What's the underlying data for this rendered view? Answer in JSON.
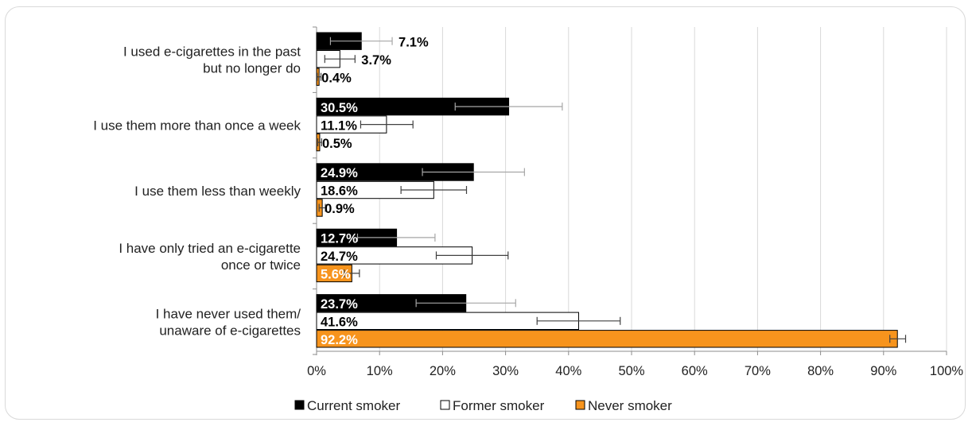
{
  "chart_data": {
    "type": "bar",
    "orientation": "horizontal",
    "categories": [
      [
        "I used e-cigarettes in the past",
        "but no longer do"
      ],
      [
        "I use them more than once a week"
      ],
      [
        "I use them less than weekly"
      ],
      [
        "I have only tried an e-cigarette",
        "once or twice"
      ],
      [
        "I have never used them/",
        "unaware of e-cigarettes"
      ]
    ],
    "series": [
      {
        "name": "Current smoker",
        "color": "#000000",
        "values": [
          7.1,
          30.5,
          24.9,
          12.7,
          23.7
        ],
        "labels": [
          "7.1%",
          "30.5%",
          "24.9%",
          "12.7%",
          "23.7%"
        ],
        "err_low": [
          2.2,
          22.0,
          16.8,
          6.5,
          15.8
        ],
        "err_high": [
          12.0,
          39.0,
          33.0,
          18.8,
          31.6
        ]
      },
      {
        "name": "Former smoker",
        "color": "#ffffff",
        "values": [
          3.7,
          11.1,
          18.6,
          24.7,
          41.6
        ],
        "labels": [
          "3.7%",
          "11.1%",
          "18.6%",
          "24.7%",
          "41.6%"
        ],
        "err_low": [
          1.3,
          7.0,
          13.4,
          19.0,
          35.0
        ],
        "err_high": [
          6.1,
          15.3,
          23.8,
          30.4,
          48.2
        ]
      },
      {
        "name": "Never smoker",
        "color": "#f7941d",
        "values": [
          0.4,
          0.5,
          0.9,
          5.6,
          92.2
        ],
        "labels": [
          "0.4%",
          "0.5%",
          "0.9%",
          "5.6%",
          "92.2%"
        ],
        "err_low": [
          0.1,
          0.2,
          0.4,
          4.4,
          91.0
        ],
        "err_high": [
          0.7,
          0.8,
          1.4,
          6.8,
          93.5
        ]
      }
    ],
    "xlim": [
      0,
      100
    ],
    "xticks": [
      "0%",
      "10%",
      "20%",
      "30%",
      "40%",
      "50%",
      "60%",
      "70%",
      "80%",
      "90%",
      "100%"
    ],
    "grid": true,
    "legend_position": "bottom"
  }
}
